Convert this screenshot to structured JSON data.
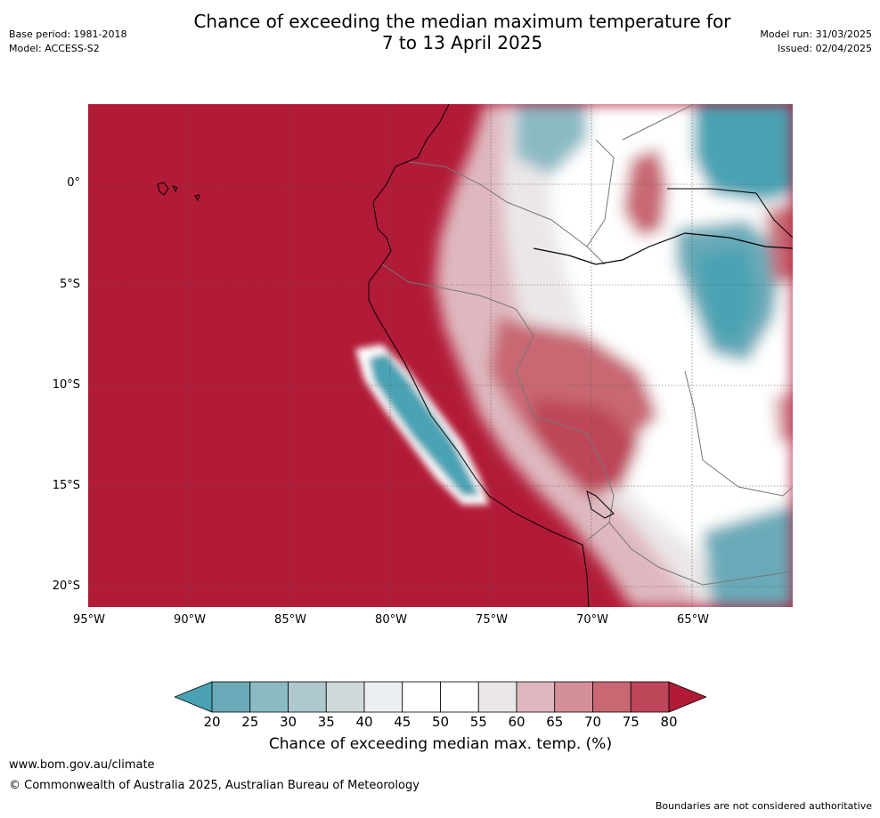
{
  "header": {
    "title_line1": "Chance of exceeding the median maximum temperature for",
    "title_line2": "7 to 13 April 2025",
    "base_period": "Base period: 1981-2018",
    "model": "Model: ACCESS-S2",
    "model_run": "Model run: 31/03/2025",
    "issued": "Issued: 02/04/2025"
  },
  "map": {
    "lat_labels": [
      "0°",
      "5°S",
      "10°S",
      "15°S",
      "20°S"
    ],
    "lon_labels": [
      "95°W",
      "90°W",
      "85°W",
      "80°W",
      "75°W",
      "70°W",
      "65°W"
    ],
    "colors": {
      "ocean_high": "#b21b37",
      "low": "#4aa3b4"
    }
  },
  "colorbar": {
    "ticks": [
      "20",
      "25",
      "30",
      "35",
      "40",
      "45",
      "50",
      "55",
      "60",
      "65",
      "70",
      "75",
      "80"
    ],
    "colors": [
      "#4aa3b4",
      "#6aaab8",
      "#8bbac4",
      "#adc9cd",
      "#cfd9dc",
      "#ebeff1",
      "#ffffff",
      "#ffffff",
      "#ebe7e8",
      "#dfb8bf",
      "#d48f99",
      "#c86872",
      "#bd4658",
      "#b21b37"
    ],
    "label": "Chance of exceeding median max. temp. (%)"
  },
  "footer": {
    "url": "www.bom.gov.au/climate",
    "copyright": "© Commonwealth of Australia 2025, Australian Bureau of Meteorology",
    "disclaimer": "Boundaries are not considered authoritative"
  }
}
